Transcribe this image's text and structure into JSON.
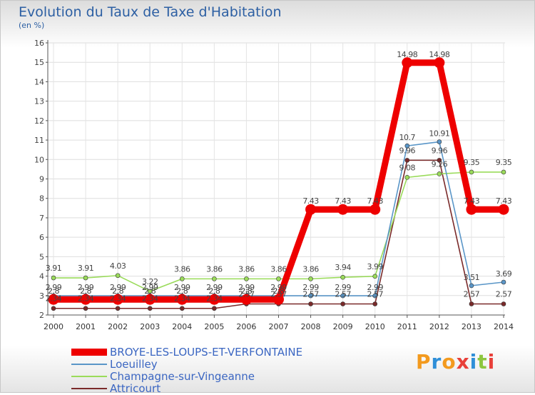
{
  "header": {
    "title": "Evolution du Taux de Taxe d'Habitation",
    "unit": "(en %)"
  },
  "logo": {
    "text": "Proxiti",
    "colors": [
      "#f39a1e",
      "#2f8fd8",
      "#f39a1e",
      "#e8403a",
      "#2f8fd8",
      "#8dc63f",
      "#e8403a"
    ]
  },
  "chart_data": {
    "type": "line",
    "title": "Evolution du Taux de Taxe d'Habitation",
    "ylabel": "(en %)",
    "ylim": [
      2,
      16
    ],
    "yticks": [
      "2",
      "3",
      "4",
      "5",
      "6",
      "7",
      "8",
      "9",
      "10",
      "11",
      "12",
      "13",
      "14",
      "15",
      "16"
    ],
    "x": [
      "2000",
      "2001",
      "2002",
      "2003",
      "2004",
      "2005",
      "2006",
      "2007",
      "2008",
      "2009",
      "2010",
      "2011",
      "2012",
      "2013",
      "2014"
    ],
    "series": [
      {
        "name": "BROYE-LES-LOUPS-ET-VERFONTAINE",
        "color": "#ee0000",
        "values": [
          2.8,
          2.8,
          2.8,
          2.8,
          2.8,
          2.8,
          2.8,
          2.8,
          7.43,
          7.43,
          7.43,
          14.98,
          14.98,
          7.43,
          7.43
        ],
        "labels": [
          "2.8",
          "2.8",
          "2.8",
          "2.8",
          "2.8",
          "2.8",
          "2.8",
          "2.8",
          "7.43",
          "7.43",
          "7.43",
          "14.98",
          "14.98",
          "7.43",
          "7.43"
        ]
      },
      {
        "name": "Loeuilley",
        "color": "#5a96c8",
        "values": [
          2.99,
          2.99,
          2.99,
          2.99,
          2.99,
          2.99,
          2.99,
          2.99,
          2.99,
          2.99,
          2.99,
          10.7,
          10.91,
          3.51,
          3.69
        ],
        "labels": [
          "2.99",
          "2.99",
          "2.99",
          "2.99",
          "2.99",
          "2.99",
          "2.99",
          "2.99",
          "2.99",
          "2.99",
          "2.99",
          "10.7",
          "10.91",
          "3.51",
          "3.69"
        ]
      },
      {
        "name": "Champagne-sur-Vingeanne",
        "color": "#9adb5a",
        "values": [
          3.91,
          3.91,
          4.03,
          3.22,
          3.86,
          3.86,
          3.86,
          3.86,
          3.86,
          3.94,
          3.99,
          9.08,
          9.26,
          9.35,
          9.35
        ],
        "labels": [
          "3.91",
          "3.91",
          "4.03",
          "3.22",
          "3.86",
          "3.86",
          "3.86",
          "3.86",
          "3.86",
          "3.94",
          "3.99",
          "9.08",
          "9.26",
          "9.35",
          "9.35"
        ]
      },
      {
        "name": "Attricourt",
        "color": "#7a2a2a",
        "values": [
          2.34,
          2.34,
          2.34,
          2.34,
          2.34,
          2.34,
          2.57,
          2.57,
          2.57,
          2.57,
          2.57,
          9.96,
          9.96,
          2.57,
          2.57
        ],
        "labels": [
          "2.34",
          "2.34",
          "2.34",
          "2.34",
          "2.34",
          "2.34",
          "2.57",
          "2.57",
          "2.57",
          "2.57",
          "2.57",
          "9.96",
          "9.96",
          "2.57",
          "2.57"
        ]
      }
    ]
  }
}
